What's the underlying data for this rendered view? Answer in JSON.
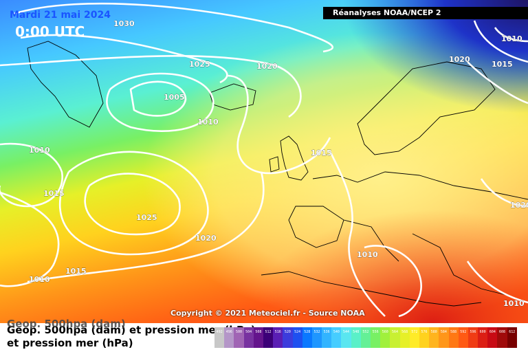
{
  "header": {
    "date": "Mardi 21 mai 2024",
    "time": "0:00 UTC",
    "source": "Réanalyses NOAA/NCEP 2"
  },
  "copyright": "Copyright © 2021 Meteociel.fr - Source NOAA",
  "footer": {
    "title": "Geop. 500hpa (dam) et pression mer (hPa)",
    "title_ghost": "Geop. 500hpa (dam)",
    "subtitle": "et pression mer (hPa)"
  },
  "isobar_labels": [
    "1030",
    "1025",
    "1020",
    "1005",
    "1010",
    "1015",
    "1010",
    "1015",
    "1025",
    "1020",
    "1010",
    "1015",
    "1020",
    "1015",
    "1010",
    "1020",
    "1010",
    "1010"
  ],
  "scale": {
    "labels": [
      "492",
      "496",
      "500",
      "504",
      "508",
      "512",
      "516",
      "520",
      "524",
      "528",
      "532",
      "536",
      "540",
      "544",
      "548",
      "552",
      "556",
      "560",
      "564",
      "568",
      "572",
      "576",
      "580",
      "584",
      "588",
      "592",
      "596",
      "600",
      "604",
      "608",
      "612"
    ],
    "colors": [
      "#c8c8c8",
      "#b496c8",
      "#a064b4",
      "#7832a0",
      "#64148c",
      "#3c0078",
      "#5a1eb4",
      "#3c3cdc",
      "#1e50f0",
      "#0a78ff",
      "#1e96ff",
      "#32b4ff",
      "#46cdff",
      "#5ae6f0",
      "#5af0c8",
      "#64f096",
      "#78f064",
      "#a0f03c",
      "#c8f032",
      "#e6f028",
      "#ffeb28",
      "#ffd21e",
      "#ffb41e",
      "#ff9619",
      "#ff7814",
      "#ff5a14",
      "#f03c14",
      "#dc1e14",
      "#c80a14",
      "#a00a0a",
      "#780000"
    ]
  }
}
